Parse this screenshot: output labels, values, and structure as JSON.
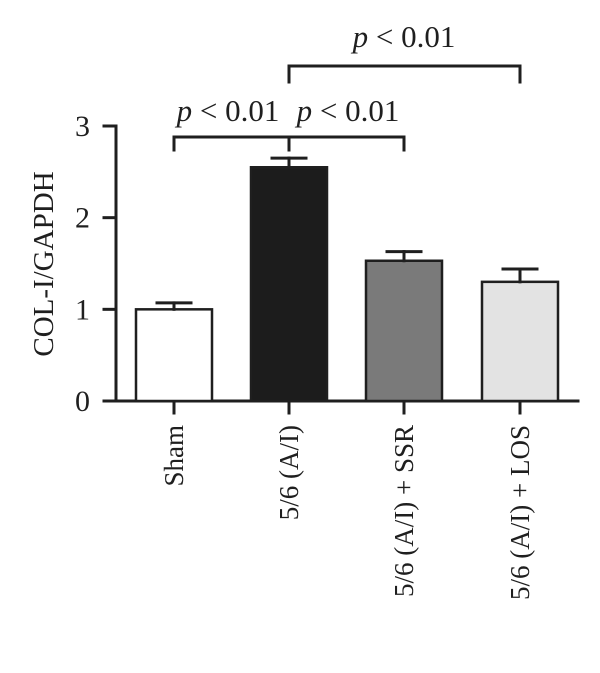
{
  "chart_data": {
    "type": "bar",
    "ylabel": "COL-I/GAPDH",
    "xlabel": "",
    "ylim": [
      0,
      3
    ],
    "yticks": [
      0,
      1,
      2,
      3
    ],
    "grid": false,
    "categories": [
      "Sham",
      "5/6 (A/I)",
      "5/6 (A/I) + SSR",
      "5/6 (A/I) + LOS"
    ],
    "values": [
      1.0,
      2.55,
      1.53,
      1.3
    ],
    "errors": [
      0.07,
      0.1,
      0.1,
      0.14
    ],
    "colors": [
      "#ffffff",
      "#1c1c1c",
      "#7a7a7a",
      "#e3e3e3"
    ],
    "significance": [
      {
        "from": 0,
        "to": 1,
        "label_p": "p",
        "label_rest": " < 0.01"
      },
      {
        "from": 1,
        "to": 2,
        "label_p": "p",
        "label_rest": " < 0.01"
      },
      {
        "from": 1,
        "to": 3,
        "label_p": "p",
        "label_rest": " < 0.01"
      }
    ]
  }
}
